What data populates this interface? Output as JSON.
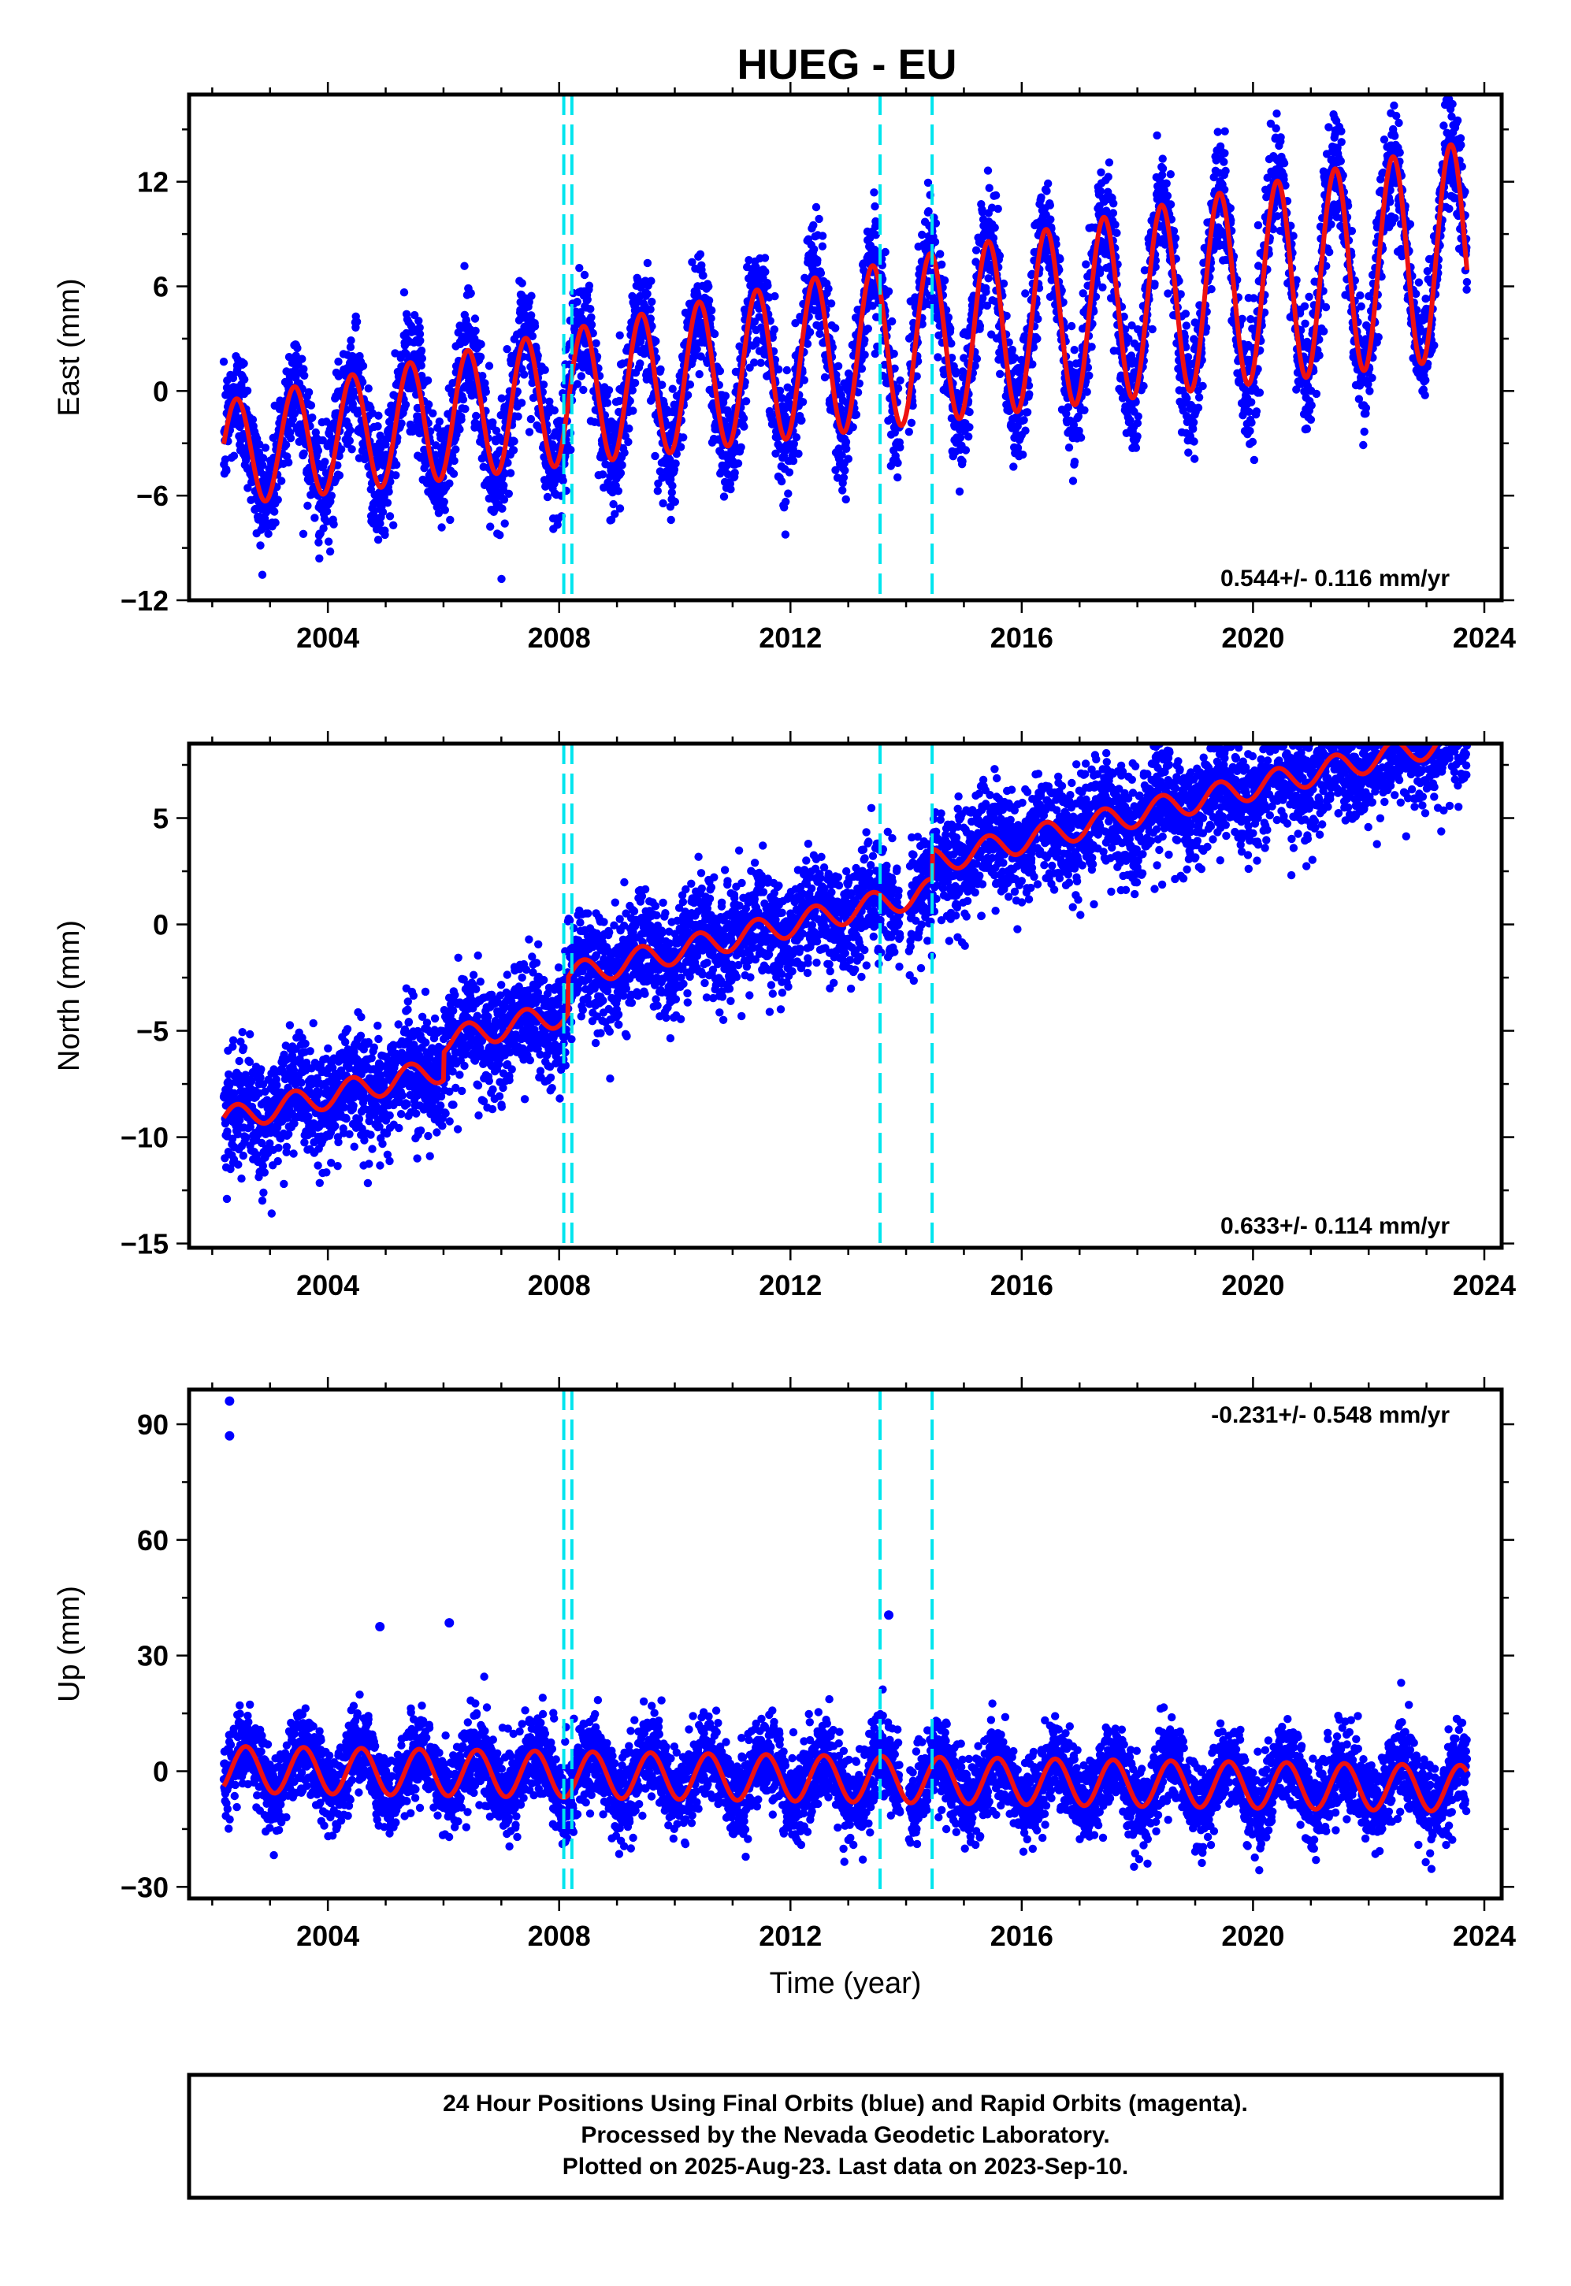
{
  "title": "HUEG - EU",
  "footer": {
    "lines": [
      "24 Hour Positions Using Final Orbits (blue) and Rapid Orbits (magenta).",
      "Processed by the Nevada Geodetic Laboratory.",
      "Plotted on 2025-Aug-23. Last data on 2023-Sep-10."
    ]
  },
  "colors": {
    "points": "#0000ff",
    "model": "#ee1111",
    "breaks": "#00e5ee",
    "frame": "#000000"
  },
  "chart_data": [
    {
      "type": "scatter",
      "panel": "east",
      "ylabel": "East (mm)",
      "xlabel": "",
      "xlim": [
        2001.6,
        2024.3
      ],
      "ylim": [
        -12,
        17
      ],
      "xticks": [
        2004,
        2008,
        2012,
        2016,
        2020,
        2024
      ],
      "yticks": [
        -12,
        -6,
        0,
        6,
        12
      ],
      "data_span": [
        2002.2,
        2023.7
      ],
      "rate_label": "0.544+/- 0.116 mm/yr",
      "rate_position": "bottom-right",
      "model": {
        "intercept": -3.6,
        "rate": 0.544,
        "seasonal_amplitude": 3.0,
        "amplitude_growth": 0.05,
        "phase_peak_fraction": 0.42,
        "steps": []
      },
      "scatter_sigma": 1.7,
      "break_lines": [
        2008.08,
        2008.22,
        2013.55,
        2014.45
      ],
      "grid": false
    },
    {
      "type": "scatter",
      "panel": "north",
      "ylabel": "North (mm)",
      "xlabel": "",
      "xlim": [
        2001.6,
        2024.3
      ],
      "ylim": [
        -15.2,
        8.5
      ],
      "xticks": [
        2004,
        2008,
        2012,
        2016,
        2020,
        2024
      ],
      "yticks": [
        -15,
        -10,
        -5,
        0,
        5
      ],
      "data_span": [
        2002.2,
        2023.7
      ],
      "rate_label": "0.633+/- 0.114 mm/yr",
      "rate_position": "bottom-right",
      "model": {
        "intercept": -9.2,
        "rate": 0.633,
        "seasonal_amplitude": 0.6,
        "amplitude_growth": 0.0,
        "phase_peak_fraction": 0.42,
        "steps": [
          {
            "t": 2006.0,
            "dy": 1.3
          },
          {
            "t": 2008.15,
            "dy": 1.7
          },
          {
            "t": 2014.45,
            "dy": 1.4
          }
        ]
      },
      "scatter_sigma": 1.3,
      "break_lines": [
        2008.08,
        2008.22,
        2013.55,
        2014.45
      ],
      "grid": false
    },
    {
      "type": "scatter",
      "panel": "up",
      "ylabel": "Up (mm)",
      "xlabel": "Time (year)",
      "xlim": [
        2001.6,
        2024.3
      ],
      "ylim": [
        -33,
        99
      ],
      "xticks": [
        2004,
        2008,
        2012,
        2016,
        2020,
        2024
      ],
      "yticks": [
        -30,
        0,
        30,
        60,
        90
      ],
      "data_span": [
        2002.2,
        2023.7
      ],
      "rate_label": "-0.231+/- 0.548 mm/yr",
      "rate_position": "top-right",
      "model": {
        "intercept": 0.5,
        "rate": -0.231,
        "seasonal_amplitude": 6.0,
        "amplitude_growth": 0.0,
        "phase_peak_fraction": 0.58,
        "steps": []
      },
      "scatter_sigma": 5.5,
      "outliers": [
        [
          2002.3,
          96
        ],
        [
          2002.3,
          87
        ],
        [
          2004.9,
          37.5
        ],
        [
          2006.1,
          38.5
        ],
        [
          2013.7,
          40.5
        ]
      ],
      "break_lines": [
        2008.08,
        2008.22,
        2013.55,
        2014.45
      ],
      "grid": false
    }
  ]
}
